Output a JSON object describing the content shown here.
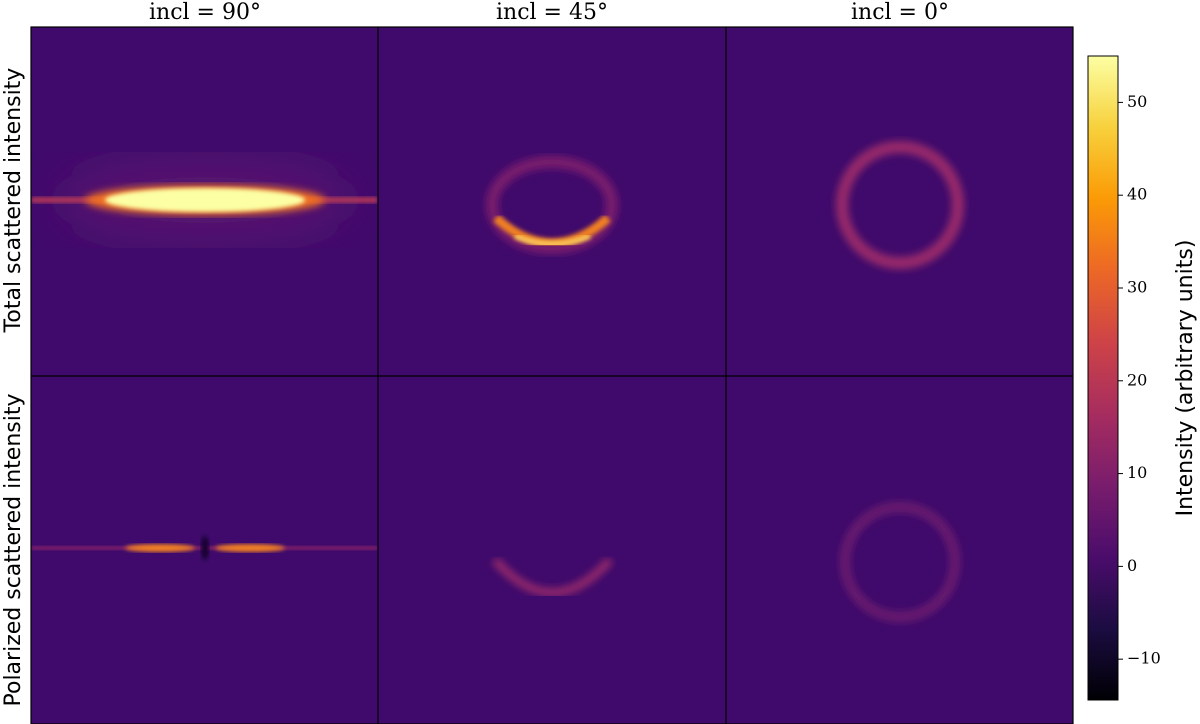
{
  "chart_data": {
    "type": "heatmap",
    "columns": [
      "incl = 90°",
      "incl = 45°",
      "incl = 0°"
    ],
    "rows": [
      "Total scattered intensity",
      "Polarized scattered intensity"
    ],
    "colorbar_label": "Intensity (arbitrary units)",
    "ylim": [
      -14.4,
      55
    ],
    "yticks": [
      {
        "value": -10,
        "label": "−10"
      },
      0,
      10,
      20,
      30,
      40,
      50
    ]
  }
}
